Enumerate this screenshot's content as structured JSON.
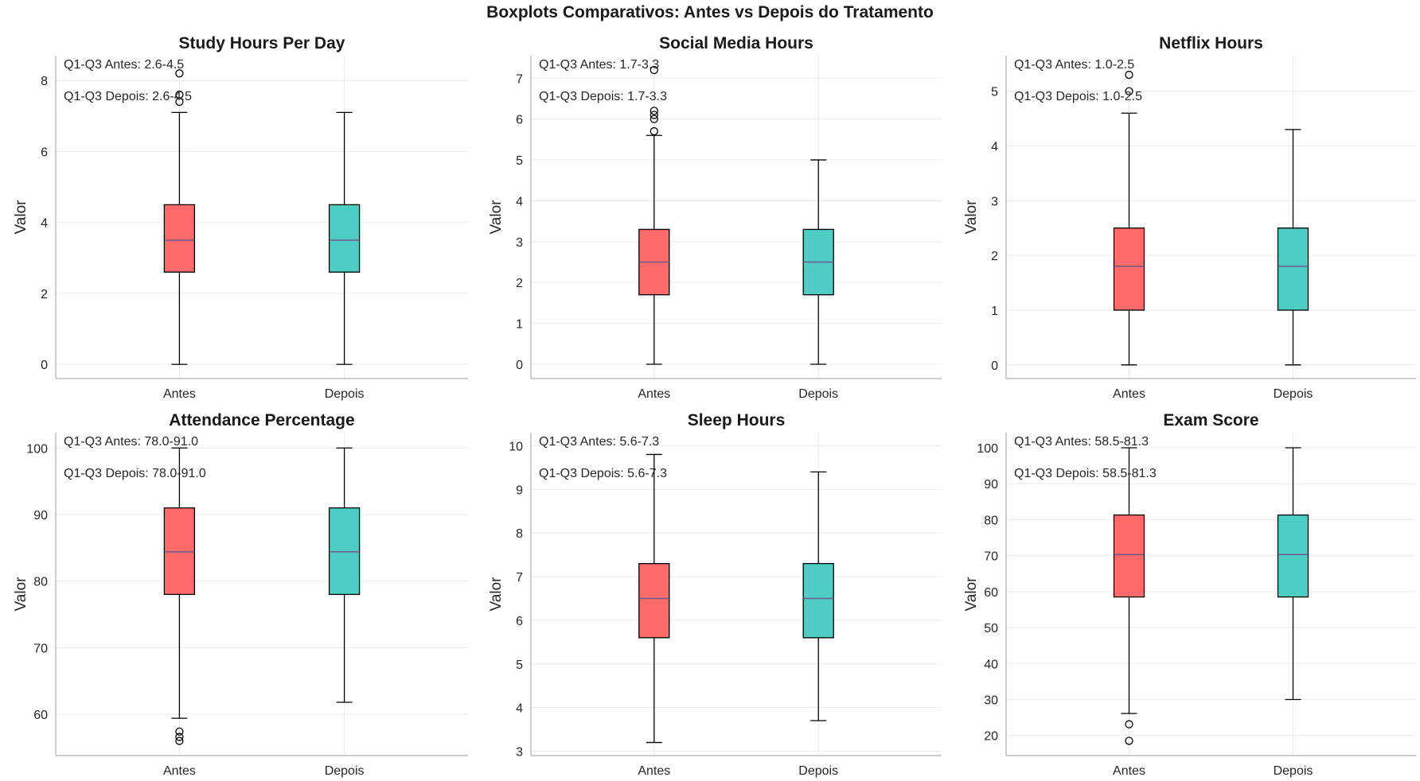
{
  "figure": {
    "title": "Boxplots Comparativos: Antes vs Depois do Tratamento"
  },
  "colors": {
    "antes_fill": "#FF6B6B",
    "depois_fill": "#4ECDC4",
    "median_line": "#6F5A8C",
    "box_edge": "#000000",
    "grid": "#EBEBEB",
    "axis": "#B0B0B0",
    "text": "#262626"
  },
  "chart_data": [
    {
      "type": "box",
      "title": "Study Hours Per Day",
      "ylabel": "Valor",
      "categories": [
        "Antes",
        "Depois"
      ],
      "ylim": [
        -0.4,
        8.7
      ],
      "yticks": [
        0,
        2,
        4,
        6,
        8
      ],
      "grid": true,
      "annotations": [
        "Q1-Q3 Antes: 2.6-4.5",
        "Q1-Q3 Depois: 2.6-4.5"
      ],
      "boxes": [
        {
          "name": "Antes",
          "whislo": 0.0,
          "q1": 2.6,
          "med": 3.5,
          "q3": 4.5,
          "whishi": 7.1,
          "fliers": [
            7.4,
            7.6,
            8.2
          ]
        },
        {
          "name": "Depois",
          "whislo": 0.0,
          "q1": 2.6,
          "med": 3.5,
          "q3": 4.5,
          "whishi": 7.1,
          "fliers": []
        }
      ]
    },
    {
      "type": "box",
      "title": "Social Media Hours",
      "ylabel": "Valor",
      "categories": [
        "Antes",
        "Depois"
      ],
      "ylim": [
        -0.35,
        7.55
      ],
      "yticks": [
        0,
        1,
        2,
        3,
        4,
        5,
        6,
        7
      ],
      "grid": true,
      "annotations": [
        "Q1-Q3 Antes: 1.7-3.3",
        "Q1-Q3 Depois: 1.7-3.3"
      ],
      "boxes": [
        {
          "name": "Antes",
          "whislo": 0.0,
          "q1": 1.7,
          "med": 2.5,
          "q3": 3.3,
          "whishi": 5.6,
          "fliers": [
            5.7,
            6.0,
            6.1,
            6.2,
            7.2
          ]
        },
        {
          "name": "Depois",
          "whislo": 0.0,
          "q1": 1.7,
          "med": 2.5,
          "q3": 3.3,
          "whishi": 5.0,
          "fliers": []
        }
      ]
    },
    {
      "type": "box",
      "title": "Netflix Hours",
      "ylabel": "Valor",
      "categories": [
        "Antes",
        "Depois"
      ],
      "ylim": [
        -0.25,
        5.65
      ],
      "yticks": [
        0,
        1,
        2,
        3,
        4,
        5
      ],
      "grid": true,
      "annotations": [
        "Q1-Q3 Antes: 1.0-2.5",
        "Q1-Q3 Depois: 1.0-2.5"
      ],
      "boxes": [
        {
          "name": "Antes",
          "whislo": 0.0,
          "q1": 1.0,
          "med": 1.8,
          "q3": 2.5,
          "whishi": 4.6,
          "fliers": [
            5.0,
            5.3
          ]
        },
        {
          "name": "Depois",
          "whislo": 0.0,
          "q1": 1.0,
          "med": 1.8,
          "q3": 2.5,
          "whishi": 4.3,
          "fliers": []
        }
      ]
    },
    {
      "type": "box",
      "title": "Attendance Percentage",
      "ylabel": "Valor",
      "categories": [
        "Antes",
        "Depois"
      ],
      "ylim": [
        53.8,
        102.3
      ],
      "yticks": [
        60,
        70,
        80,
        90,
        100
      ],
      "grid": true,
      "annotations": [
        "Q1-Q3 Antes: 78.0-91.0",
        "Q1-Q3 Depois: 78.0-91.0"
      ],
      "boxes": [
        {
          "name": "Antes",
          "whislo": 59.4,
          "q1": 78.0,
          "med": 84.4,
          "q3": 91.0,
          "whishi": 100.0,
          "fliers": [
            56.0,
            56.6,
            57.4
          ]
        },
        {
          "name": "Depois",
          "whislo": 61.8,
          "q1": 78.0,
          "med": 84.4,
          "q3": 91.0,
          "whishi": 100.0,
          "fliers": []
        }
      ]
    },
    {
      "type": "box",
      "title": "Sleep Hours",
      "ylabel": "Valor",
      "categories": [
        "Antes",
        "Depois"
      ],
      "ylim": [
        2.9,
        10.3
      ],
      "yticks": [
        3,
        4,
        5,
        6,
        7,
        8,
        9,
        10
      ],
      "grid": true,
      "annotations": [
        "Q1-Q3 Antes: 5.6-7.3",
        "Q1-Q3 Depois: 5.6-7.3"
      ],
      "boxes": [
        {
          "name": "Antes",
          "whislo": 3.2,
          "q1": 5.6,
          "med": 6.5,
          "q3": 7.3,
          "whishi": 9.8,
          "fliers": []
        },
        {
          "name": "Depois",
          "whislo": 3.7,
          "q1": 5.6,
          "med": 6.5,
          "q3": 7.3,
          "whishi": 9.4,
          "fliers": []
        }
      ]
    },
    {
      "type": "box",
      "title": "Exam Score",
      "ylabel": "Valor",
      "categories": [
        "Antes",
        "Depois"
      ],
      "ylim": [
        14.4,
        104.2
      ],
      "yticks": [
        20,
        30,
        40,
        50,
        60,
        70,
        80,
        90,
        100
      ],
      "grid": true,
      "annotations": [
        "Q1-Q3 Antes: 58.5-81.3",
        "Q1-Q3 Depois: 58.5-81.3"
      ],
      "boxes": [
        {
          "name": "Antes",
          "whislo": 26.1,
          "q1": 58.5,
          "med": 70.3,
          "q3": 81.3,
          "whishi": 100.0,
          "fliers": [
            18.5,
            23.1
          ]
        },
        {
          "name": "Depois",
          "whislo": 30.0,
          "q1": 58.5,
          "med": 70.3,
          "q3": 81.3,
          "whishi": 100.0,
          "fliers": []
        }
      ]
    }
  ]
}
